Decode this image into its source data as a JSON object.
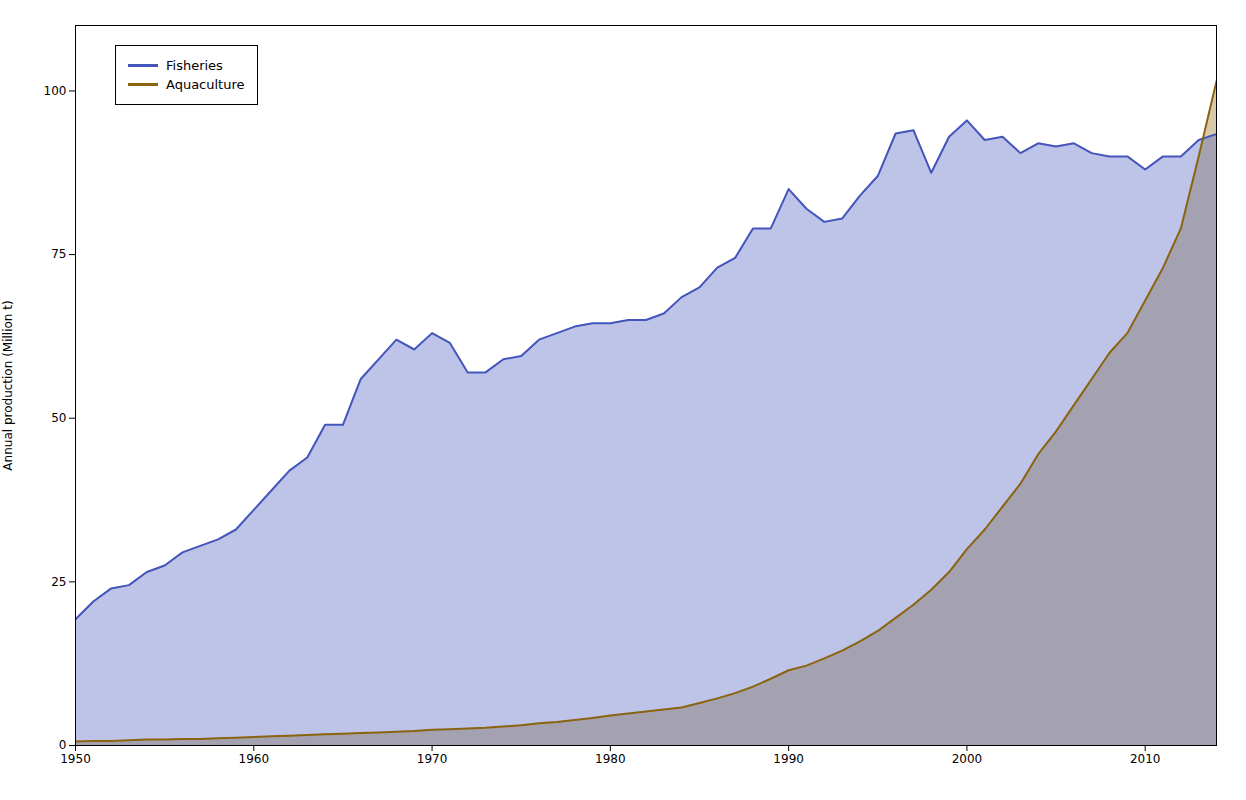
{
  "chart_data": {
    "type": "area",
    "ylabel": "Annual production (Million t)",
    "x": [
      1950,
      1951,
      1952,
      1953,
      1954,
      1955,
      1956,
      1957,
      1958,
      1959,
      1960,
      1961,
      1962,
      1963,
      1964,
      1965,
      1966,
      1967,
      1968,
      1969,
      1970,
      1971,
      1972,
      1973,
      1974,
      1975,
      1976,
      1977,
      1978,
      1979,
      1980,
      1981,
      1982,
      1983,
      1984,
      1985,
      1986,
      1987,
      1988,
      1989,
      1990,
      1991,
      1992,
      1993,
      1994,
      1995,
      1996,
      1997,
      1998,
      1999,
      2000,
      2001,
      2002,
      2003,
      2004,
      2005,
      2006,
      2007,
      2008,
      2009,
      2010,
      2011,
      2012,
      2013,
      2014
    ],
    "series": [
      {
        "name": "Fisheries",
        "color": "#4455bb",
        "values": [
          19.3,
          22.0,
          24.0,
          24.5,
          26.5,
          27.5,
          29.5,
          30.5,
          31.5,
          33.0,
          36.0,
          39.0,
          42.0,
          44.0,
          49.0,
          49.0,
          56.0,
          59.0,
          62.0,
          60.5,
          63.0,
          61.5,
          57.0,
          57.0,
          59.0,
          59.5,
          62.0,
          63.0,
          64.0,
          64.5,
          64.5,
          65.0,
          65.0,
          66.0,
          68.5,
          70.0,
          73.0,
          74.5,
          79.0,
          79.0,
          85.0,
          82.0,
          80.0,
          80.5,
          84.0,
          87.0,
          93.5,
          94.0,
          87.5,
          93.0,
          95.5,
          92.5,
          93.0,
          90.5,
          92.0,
          91.5,
          92.0,
          90.5,
          90.0,
          90.0,
          88.0,
          90.0,
          90.0,
          92.5,
          93.4
        ]
      },
      {
        "name": "Aquaculture",
        "color": "#8b6410",
        "values": [
          0.6,
          0.7,
          0.7,
          0.8,
          0.9,
          0.9,
          1.0,
          1.0,
          1.1,
          1.2,
          1.3,
          1.4,
          1.5,
          1.6,
          1.7,
          1.8,
          1.9,
          2.0,
          2.1,
          2.2,
          2.4,
          2.5,
          2.6,
          2.7,
          2.9,
          3.1,
          3.4,
          3.6,
          3.9,
          4.2,
          4.6,
          4.9,
          5.2,
          5.5,
          5.8,
          6.5,
          7.2,
          8.0,
          9.0,
          10.2,
          11.5,
          12.2,
          13.3,
          14.5,
          15.9,
          17.5,
          19.5,
          21.5,
          23.8,
          26.5,
          30.0,
          33.0,
          36.5,
          40.0,
          44.5,
          48.0,
          52.0,
          56.0,
          60.0,
          63.0,
          68.0,
          73.0,
          79.0,
          90.0,
          101.5
        ]
      }
    ],
    "xlim": [
      1950,
      2014
    ],
    "ylim": [
      0,
      110
    ],
    "xticks": [
      1950,
      1960,
      1970,
      1980,
      1990,
      2000,
      2010
    ],
    "yticks": [
      0,
      25,
      50,
      75,
      100
    ],
    "grid": false,
    "legend": "upper left"
  }
}
